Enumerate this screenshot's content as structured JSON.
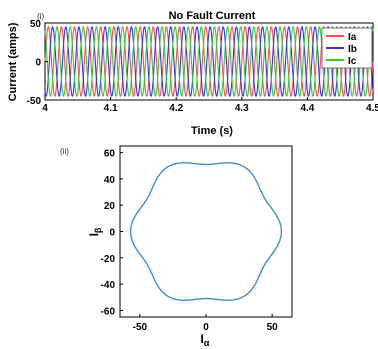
{
  "chart_data": [
    {
      "type": "line",
      "panel_label": "(i)",
      "title": "No Fault Current",
      "xlabel": "Time (s)",
      "ylabel": "Current (amps)",
      "xlim": [
        4,
        4.5
      ],
      "ylim": [
        -50,
        50
      ],
      "x_ticks": [
        "4",
        "4.1",
        "4.2",
        "4.3",
        "4.4",
        "4.5"
      ],
      "y_ticks": [
        "50",
        "0",
        "-50"
      ],
      "amplitude": 45,
      "frequency_hz": 50,
      "grid": false,
      "legend_position": "top-right",
      "series": [
        {
          "name": "Ia",
          "phase_deg": 0,
          "color": "#ff4d4d"
        },
        {
          "name": "Ib",
          "phase_deg": -120,
          "color": "#3333ee"
        },
        {
          "name": "Ic",
          "phase_deg": 120,
          "color": "#33cc33"
        }
      ]
    },
    {
      "type": "line",
      "panel_label": "(ii)",
      "title": "",
      "xlabel": "Iα",
      "ylabel": "Iβ",
      "xlim": [
        -65,
        65
      ],
      "ylim": [
        -65,
        65
      ],
      "x_ticks": [
        "-50",
        "0",
        "50"
      ],
      "y_ticks": [
        "60",
        "40",
        "20",
        "0",
        "-20",
        "-40",
        "-60"
      ],
      "radius_mean": 54,
      "harmonic_ripple": 3,
      "harmonic_order": 6,
      "grid": false,
      "color": "#3d8fc7"
    }
  ],
  "labels": {
    "xlabel2_main": "I",
    "xlabel2_sub": "α",
    "ylabel2_main": "I",
    "ylabel2_sub": "β"
  }
}
